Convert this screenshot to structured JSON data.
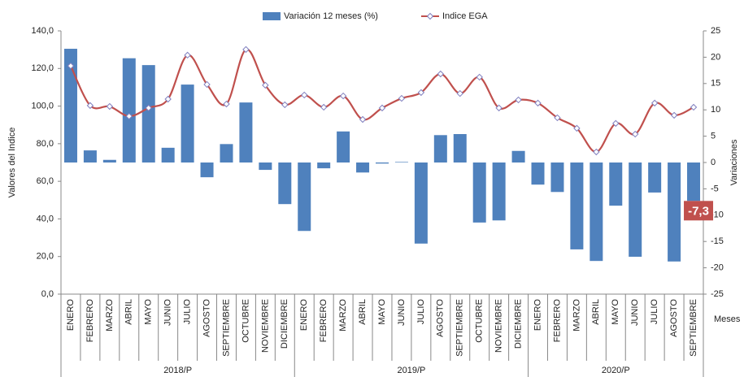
{
  "chart_data": {
    "type": "bar-line",
    "category_groups": [
      {
        "label": "2018/P",
        "categories": [
          "ENERO",
          "FEBRERO",
          "MARZO",
          "ABRIL",
          "MAYO",
          "JUNIO",
          "JULIO",
          "AGOSTO",
          "SEPTIEMBRE",
          "OCTUBRE",
          "NOVIEMBRE",
          "DICIEMBRE"
        ]
      },
      {
        "label": "2019/P",
        "categories": [
          "ENERO",
          "FEBRERO",
          "MARZO",
          "ABRIL",
          "MAYO",
          "JUNIO",
          "JULIO",
          "AGOSTO",
          "SEPTIEMBRE",
          "OCTUBRE",
          "NOVIEMBRE",
          "DICIEMBRE"
        ]
      },
      {
        "label": "2020/P",
        "categories": [
          "ENERO",
          "FEBRERO",
          "MARZO",
          "ABRIL",
          "MAYO",
          "JUNIO",
          "JULIO",
          "AGOSTO",
          "SEPTIEMBRE"
        ]
      }
    ],
    "series": [
      {
        "name": "Variación 12 meses (%)",
        "type": "bar",
        "axis": "y2",
        "color": "#4f81bd",
        "values": [
          21.6,
          2.3,
          0.5,
          19.8,
          18.5,
          2.8,
          14.8,
          -2.8,
          3.5,
          11.4,
          -1.4,
          -7.9,
          -13.0,
          -1.1,
          5.9,
          -1.9,
          -0.2,
          0.1,
          -15.4,
          5.2,
          5.4,
          -11.4,
          -11.0,
          2.2,
          -4.2,
          -5.6,
          -16.5,
          -18.7,
          -8.2,
          -17.9,
          -5.7,
          -18.8,
          -7.3
        ],
        "value_labels": [
          null,
          null,
          null,
          null,
          null,
          null,
          null,
          null,
          null,
          null,
          null,
          null,
          null,
          null,
          null,
          null,
          null,
          null,
          null,
          null,
          null,
          null,
          null,
          null,
          null,
          null,
          null,
          null,
          null,
          null,
          null,
          null,
          "-7,3"
        ]
      },
      {
        "name": "Indice EGA",
        "type": "line",
        "axis": "y",
        "color": "#c0504d",
        "marker_color": "#7f7fbf",
        "values": [
          121.4,
          100.3,
          99.8,
          94.6,
          99.0,
          103.7,
          127.1,
          111.5,
          101.1,
          130.1,
          111.1,
          100.7,
          105.9,
          99.4,
          105.4,
          92.9,
          99.0,
          104.1,
          107.2,
          117.1,
          106.7,
          115.4,
          99.0,
          103.3,
          101.6,
          93.8,
          88.2,
          75.6,
          90.8,
          85.1,
          101.6,
          95.1,
          99.4
        ]
      }
    ],
    "y_label": "Valores del Indice",
    "y2_label": "Variaciones",
    "x_label": "Meses",
    "ylim": [
      0,
      140
    ],
    "yticks": [
      {
        "value": 0,
        "label": "0,0"
      },
      {
        "value": 20,
        "label": "20,0"
      },
      {
        "value": 40,
        "label": "40,0"
      },
      {
        "value": 60,
        "label": "60,0"
      },
      {
        "value": 80,
        "label": "80,0"
      },
      {
        "value": 100,
        "label": "100,0"
      },
      {
        "value": 120,
        "label": "120,0"
      },
      {
        "value": 140,
        "label": "140,0"
      }
    ],
    "y2lim": [
      -25,
      25
    ],
    "y2ticks": [
      -25,
      -20,
      -15,
      -10,
      -5,
      0,
      5,
      10,
      15,
      20,
      25
    ],
    "label_color": "#c0504d"
  }
}
